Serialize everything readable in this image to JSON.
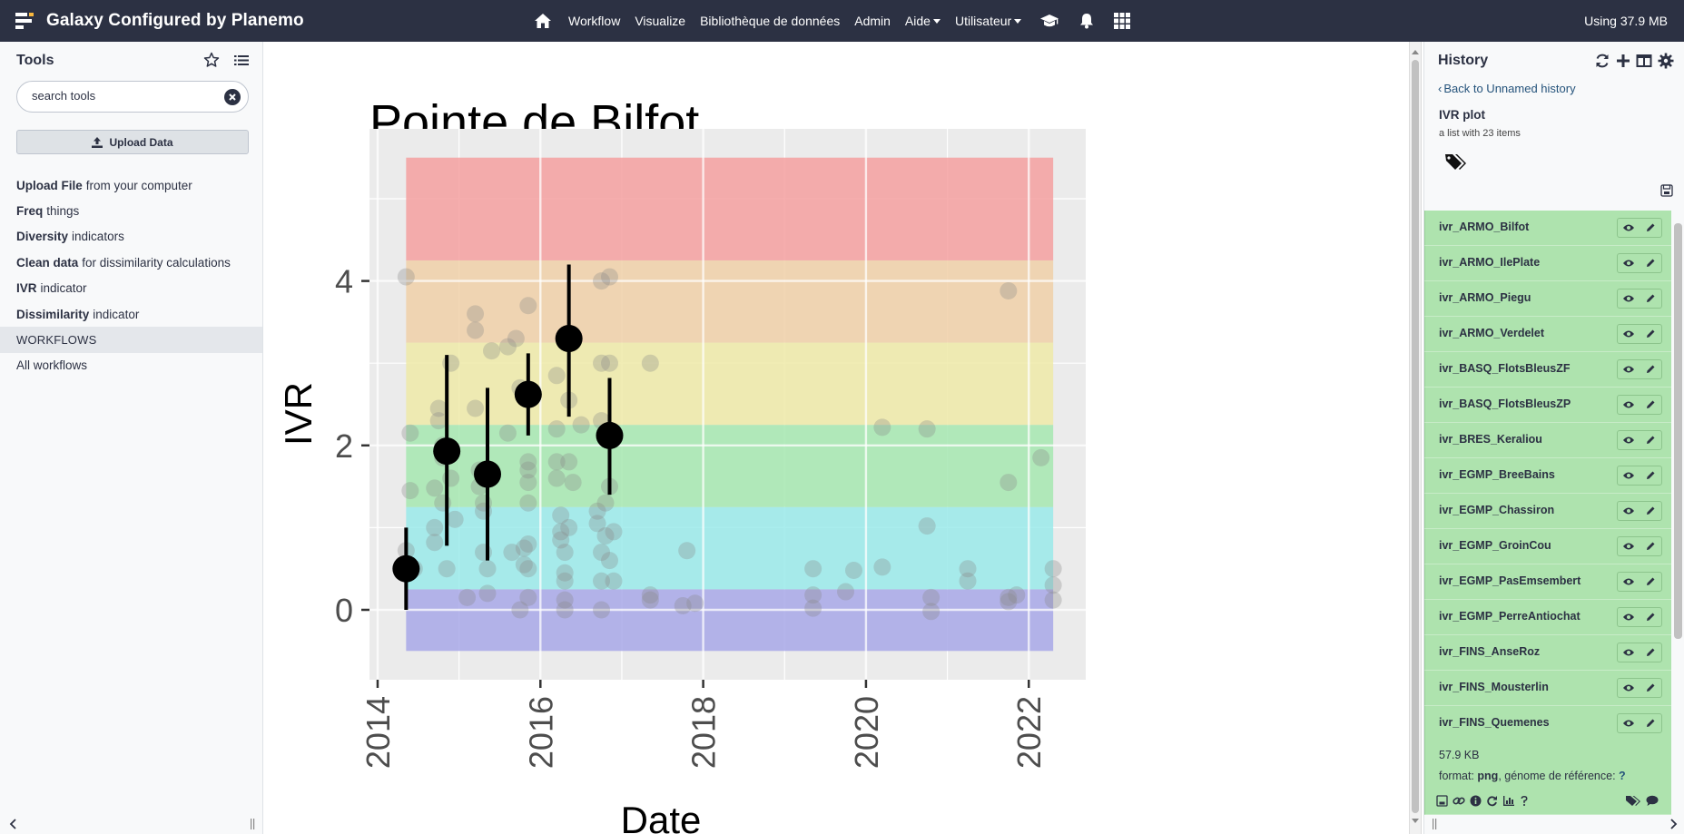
{
  "masthead": {
    "brand_title": "Galaxy Configured by Planemo",
    "nav": [
      {
        "label": "Workflow"
      },
      {
        "label": "Visualize"
      },
      {
        "label": "Bibliothèque de données"
      },
      {
        "label": "Admin"
      },
      {
        "label": "Aide"
      },
      {
        "label": "Utilisateur"
      }
    ],
    "quota": "Using 37.9 MB"
  },
  "tool_panel": {
    "title": "Tools",
    "search_placeholder": "search tools",
    "upload_label": "Upload Data",
    "tools": [
      {
        "name": "Upload File",
        "desc": "from your computer"
      },
      {
        "name": "Freq",
        "desc": "things"
      },
      {
        "name": "Diversity",
        "desc": "indicators"
      },
      {
        "name": "Clean data",
        "desc": "for dissimilarity calculations"
      },
      {
        "name": "IVR",
        "desc": "indicator"
      },
      {
        "name": "Dissimilarity",
        "desc": "indicator"
      }
    ],
    "workflows_section": "WORKFLOWS",
    "all_workflows": "All workflows"
  },
  "chart_data": {
    "type": "scatter",
    "title": "Pointe de Bilfot",
    "xlabel": "Date",
    "ylabel": "IVR",
    "xlim": [
      2013.9,
      2022.7
    ],
    "ylim": [
      -0.85,
      5.85
    ],
    "x_ticks": [
      "2014",
      "2016",
      "2018",
      "2020",
      "2022"
    ],
    "x_tick_values": [
      2014,
      2016,
      2018,
      2020,
      2022
    ],
    "y_ticks": [
      "0",
      "2",
      "4"
    ],
    "y_tick_values": [
      0,
      2,
      4
    ],
    "grid": true,
    "background_bands": [
      {
        "from": -0.5,
        "to": 0.25,
        "color": "#a8a8e8"
      },
      {
        "from": 0.25,
        "to": 1.25,
        "color": "#9aeaea"
      },
      {
        "from": 1.25,
        "to": 2.25,
        "color": "#a6e8b0"
      },
      {
        "from": 2.25,
        "to": 3.25,
        "color": "#eeeaa8"
      },
      {
        "from": 3.25,
        "to": 4.25,
        "color": "#f0d0a8"
      },
      {
        "from": 4.25,
        "to": 5.5,
        "color": "#f4a0a0"
      }
    ],
    "band_x_range": [
      2014.35,
      2022.3
    ],
    "points": [
      [
        2014.35,
        4.05
      ],
      [
        2014.4,
        2.15
      ],
      [
        2014.4,
        1.45
      ],
      [
        2014.35,
        0.72
      ],
      [
        2014.45,
        0.5
      ],
      [
        2014.7,
        1.48
      ],
      [
        2014.7,
        1.0
      ],
      [
        2014.7,
        0.82
      ],
      [
        2014.75,
        2.45
      ],
      [
        2014.75,
        2.3
      ],
      [
        2014.8,
        2.0
      ],
      [
        2014.8,
        1.85
      ],
      [
        2014.8,
        1.3
      ],
      [
        2014.85,
        0.5
      ],
      [
        2014.9,
        3.0
      ],
      [
        2014.9,
        1.6
      ],
      [
        2014.95,
        1.1
      ],
      [
        2015.1,
        0.15
      ],
      [
        2015.2,
        3.6
      ],
      [
        2015.2,
        3.4
      ],
      [
        2015.2,
        2.45
      ],
      [
        2015.25,
        1.7
      ],
      [
        2015.25,
        1.5
      ],
      [
        2015.3,
        1.3
      ],
      [
        2015.3,
        1.2
      ],
      [
        2015.3,
        0.7
      ],
      [
        2015.35,
        0.5
      ],
      [
        2015.35,
        0.2
      ],
      [
        2015.4,
        3.15
      ],
      [
        2015.6,
        3.2
      ],
      [
        2015.6,
        2.15
      ],
      [
        2015.65,
        0.7
      ],
      [
        2015.7,
        3.3
      ],
      [
        2015.75,
        2.7
      ],
      [
        2015.8,
        0.75
      ],
      [
        2015.8,
        0.55
      ],
      [
        2015.75,
        0.0
      ],
      [
        2015.85,
        3.7
      ],
      [
        2015.85,
        2.6
      ],
      [
        2015.85,
        1.8
      ],
      [
        2015.85,
        1.7
      ],
      [
        2015.85,
        1.55
      ],
      [
        2015.85,
        1.3
      ],
      [
        2015.85,
        0.8
      ],
      [
        2015.85,
        0.5
      ],
      [
        2015.85,
        0.15
      ],
      [
        2016.2,
        2.85
      ],
      [
        2016.2,
        2.2
      ],
      [
        2016.2,
        1.8
      ],
      [
        2016.2,
        1.6
      ],
      [
        2016.25,
        1.15
      ],
      [
        2016.25,
        0.95
      ],
      [
        2016.25,
        0.85
      ],
      [
        2016.3,
        0.7
      ],
      [
        2016.3,
        0.45
      ],
      [
        2016.3,
        0.35
      ],
      [
        2016.3,
        0.12
      ],
      [
        2016.3,
        0.0
      ],
      [
        2016.35,
        2.55
      ],
      [
        2016.35,
        1.8
      ],
      [
        2016.4,
        1.55
      ],
      [
        2016.35,
        1.0
      ],
      [
        2016.5,
        2.25
      ],
      [
        2016.7,
        1.2
      ],
      [
        2016.7,
        1.05
      ],
      [
        2016.75,
        4.0
      ],
      [
        2016.75,
        3.0
      ],
      [
        2016.75,
        2.3
      ],
      [
        2016.75,
        0.7
      ],
      [
        2016.75,
        0.35
      ],
      [
        2016.75,
        0.0
      ],
      [
        2016.8,
        1.3
      ],
      [
        2016.8,
        0.9
      ],
      [
        2016.85,
        4.05
      ],
      [
        2016.85,
        3.0
      ],
      [
        2016.85,
        1.5
      ],
      [
        2016.85,
        0.6
      ],
      [
        2016.9,
        0.95
      ],
      [
        2016.9,
        0.35
      ],
      [
        2017.35,
        3.0
      ],
      [
        2017.35,
        0.18
      ],
      [
        2017.35,
        0.12
      ],
      [
        2017.75,
        0.05
      ],
      [
        2017.8,
        0.72
      ],
      [
        2017.9,
        0.08
      ],
      [
        2019.35,
        0.5
      ],
      [
        2019.35,
        0.18
      ],
      [
        2019.35,
        0.02
      ],
      [
        2019.75,
        0.22
      ],
      [
        2019.85,
        0.48
      ],
      [
        2020.2,
        0.52
      ],
      [
        2020.2,
        2.22
      ],
      [
        2020.75,
        2.2
      ],
      [
        2020.75,
        1.02
      ],
      [
        2020.8,
        0.15
      ],
      [
        2020.8,
        -0.02
      ],
      [
        2021.25,
        0.5
      ],
      [
        2021.25,
        0.35
      ],
      [
        2021.75,
        3.88
      ],
      [
        2021.75,
        1.55
      ],
      [
        2021.75,
        0.15
      ],
      [
        2021.75,
        0.1
      ],
      [
        2021.85,
        0.18
      ],
      [
        2022.15,
        1.85
      ],
      [
        2022.3,
        0.5
      ],
      [
        2022.3,
        0.3
      ],
      [
        2022.3,
        0.12
      ]
    ],
    "means": [
      {
        "x": 2014.35,
        "y": 0.5,
        "lo": 0.0,
        "hi": 1.0
      },
      {
        "x": 2014.85,
        "y": 1.93,
        "lo": 0.78,
        "hi": 3.1
      },
      {
        "x": 2015.35,
        "y": 1.65,
        "lo": 0.6,
        "hi": 2.7
      },
      {
        "x": 2015.85,
        "y": 2.62,
        "lo": 2.12,
        "hi": 3.12
      },
      {
        "x": 2016.35,
        "y": 3.3,
        "lo": 2.35,
        "hi": 4.2
      },
      {
        "x": 2016.85,
        "y": 2.12,
        "lo": 1.4,
        "hi": 2.82
      }
    ]
  },
  "history": {
    "title": "History",
    "back_label": "Back to Unnamed history",
    "collection_name": "IVR plot",
    "collection_sub": "a list with 23 items",
    "items": [
      {
        "name": "ivr_ARMO_Bilfot"
      },
      {
        "name": "ivr_ARMO_IlePlate"
      },
      {
        "name": "ivr_ARMO_Piegu"
      },
      {
        "name": "ivr_ARMO_Verdelet"
      },
      {
        "name": "ivr_BASQ_FlotsBleusZF"
      },
      {
        "name": "ivr_BASQ_FlotsBleusZP"
      },
      {
        "name": "ivr_BRES_Keraliou"
      },
      {
        "name": "ivr_EGMP_BreeBains"
      },
      {
        "name": "ivr_EGMP_Chassiron"
      },
      {
        "name": "ivr_EGMP_GroinCou"
      },
      {
        "name": "ivr_EGMP_PasEmsembert"
      },
      {
        "name": "ivr_EGMP_PerreAntiochat"
      },
      {
        "name": "ivr_FINS_AnseRoz"
      },
      {
        "name": "ivr_FINS_Mousterlin"
      }
    ],
    "expanded_item": {
      "name": "ivr_FINS_Quemenes",
      "size": "57.9 KB",
      "format_label": "format:",
      "format_value": "png",
      "genome_label": ", génome de référence:",
      "genome_value": "?"
    }
  }
}
